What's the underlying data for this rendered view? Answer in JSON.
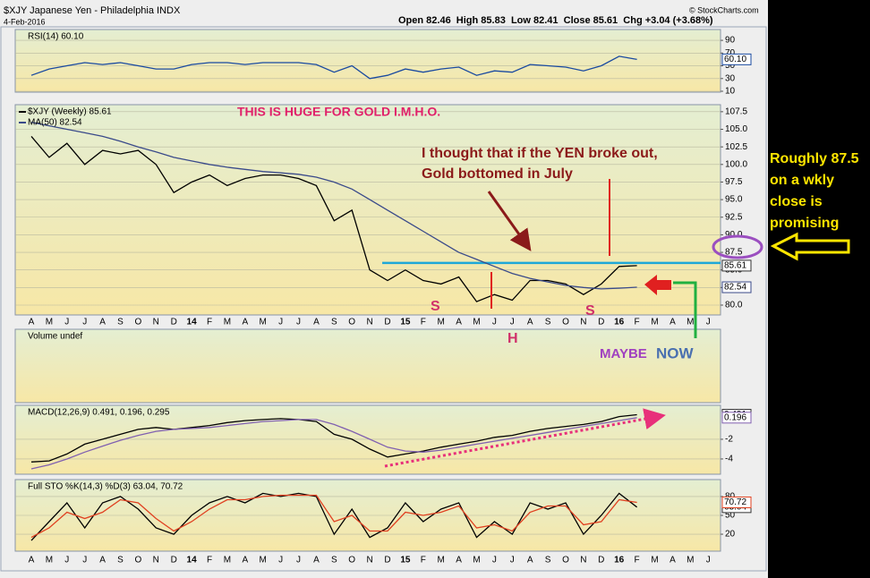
{
  "header": {
    "symbol": "$XJY Japanese Yen - Philadelphia INDX",
    "date": "4-Feb-2016",
    "quote": "Open 82.46  High 85.83  Low 82.41  Close 85.61  Chg +3.04 (+3.68%)",
    "source": "© StockCharts.com"
  },
  "annotations": {
    "headline": "THIS IS HUGE FOR GOLD I.M.H.O.",
    "thought_1": "I thought that if the YEN broke out,",
    "thought_2": "Gold bottomed in July",
    "left_shoulder": "S",
    "head": "H",
    "right_shoulder": "S",
    "maybe": "MAYBE",
    "now": "NOW",
    "side_note": [
      "Roughly 87.5",
      "on a wkly",
      "close is",
      "promising"
    ]
  },
  "chart_data": [
    {
      "type": "line",
      "title": "RSI(14) 60.10",
      "ylim": [
        8.6,
        107
      ],
      "yticks": [
        10,
        30,
        50,
        70,
        90
      ],
      "grid": true,
      "series": [
        {
          "color": "#1a4aa0",
          "last_label": "60.10",
          "values": [
            35,
            45,
            50,
            55,
            52,
            55,
            50,
            45,
            45,
            52,
            55,
            55,
            52,
            55,
            55,
            55,
            52,
            40,
            50,
            30,
            35,
            45,
            40,
            45,
            48,
            35,
            42,
            40,
            52,
            50,
            48,
            42,
            50,
            65,
            60.1,
            null,
            null,
            null,
            null
          ]
        }
      ]
    },
    {
      "type": "line",
      "categories": [
        "A",
        "M",
        "J",
        "J",
        "A",
        "S",
        "O",
        "N",
        "D",
        "14",
        "F",
        "M",
        "A",
        "M",
        "J",
        "J",
        "A",
        "S",
        "O",
        "N",
        "D",
        "15",
        "F",
        "M",
        "A",
        "M",
        "J",
        "J",
        "A",
        "S",
        "O",
        "N",
        "D",
        "16",
        "F",
        "M",
        "A",
        "M",
        "J"
      ],
      "ylim": [
        78.6,
        108.5
      ],
      "yticks": [
        {
          "value": 80,
          "label": "80.0"
        },
        82.5,
        {
          "value": 85,
          "label": "85.0"
        },
        87.5,
        {
          "value": 90,
          "label": "90.0"
        },
        92.5,
        {
          "value": 95,
          "label": "95.0"
        },
        97.5,
        {
          "value": 100,
          "label": "100.0"
        },
        102.5,
        {
          "value": 105,
          "label": "105.0"
        },
        107.5
      ],
      "grid": true,
      "hlines": [
        {
          "value": 86,
          "color": "#1fa8d8"
        }
      ],
      "series": [
        {
          "name": "$XJY (Weekly) 85.61",
          "color": "#000000",
          "values": [
            104,
            101,
            103,
            100,
            102,
            101.5,
            102,
            100,
            96,
            97.5,
            98.5,
            97,
            98,
            98.5,
            98.5,
            98,
            97,
            92,
            93.5,
            85,
            83.5,
            85,
            83.5,
            83,
            84,
            80.5,
            81.5,
            80.7,
            83.5,
            83.5,
            83,
            81.5,
            83,
            85.5,
            85.61,
            null,
            null,
            null,
            null
          ]
        },
        {
          "name": "MA(50) 82.54",
          "color": "#3a4a8a",
          "values": [
            106,
            105.5,
            105,
            104.5,
            104,
            103.3,
            102.5,
            101.8,
            101,
            100.5,
            100,
            99.6,
            99.3,
            99,
            98.8,
            98.6,
            98.2,
            97.5,
            96.5,
            95,
            93.5,
            92,
            90.5,
            89,
            87.5,
            86.5,
            85.5,
            84.5,
            83.8,
            83.3,
            82.8,
            82.5,
            82.3,
            82.4,
            82.54,
            null,
            null,
            null,
            null
          ]
        }
      ]
    },
    {
      "type": "empty",
      "title": "Volume undef"
    },
    {
      "type": "line",
      "title": "MACD(12,26,9) 0.491, 0.196, 0.295",
      "ylim": [
        -5.55,
        1.45
      ],
      "yticks": [
        -4,
        -2
      ],
      "grid": true,
      "series": [
        {
          "color": "#000000",
          "values": [
            -4.3,
            -4.2,
            -3.5,
            -2.5,
            -2,
            -1.5,
            -1,
            -0.8,
            -1,
            -0.8,
            -0.6,
            -0.3,
            -0.1,
            0,
            0.1,
            0,
            -0.2,
            -1.5,
            -2,
            -3,
            -3.8,
            -3.5,
            -3.2,
            -2.8,
            -2.5,
            -2.2,
            -1.8,
            -1.6,
            -1.2,
            -0.9,
            -0.7,
            -0.5,
            -0.2,
            0.3,
            0.491,
            null,
            null,
            null,
            null
          ]
        },
        {
          "color": "#8060b0",
          "values": [
            -5,
            -4.6,
            -4,
            -3.3,
            -2.7,
            -2.1,
            -1.6,
            -1.2,
            -1,
            -0.9,
            -0.8,
            -0.6,
            -0.4,
            -0.2,
            -0.1,
            0,
            0,
            -0.5,
            -1.2,
            -2,
            -2.8,
            -3.2,
            -3.3,
            -3.1,
            -2.8,
            -2.5,
            -2.2,
            -1.9,
            -1.6,
            -1.3,
            -1,
            -0.7,
            -0.4,
            -0.1,
            0.196,
            null,
            null,
            null,
            null
          ]
        }
      ]
    },
    {
      "type": "line",
      "title": "Full STO %K(14,3) %D(3) 63.04, 70.72",
      "ylim": [
        -7,
        107
      ],
      "yticks": [
        20,
        50,
        80
      ],
      "grid": true,
      "series": [
        {
          "color": "#000000",
          "values": [
            10,
            40,
            70,
            30,
            70,
            80,
            60,
            30,
            20,
            50,
            70,
            80,
            70,
            85,
            80,
            85,
            80,
            20,
            60,
            15,
            30,
            70,
            40,
            60,
            70,
            15,
            40,
            20,
            70,
            60,
            70,
            20,
            50,
            85,
            63.04,
            null,
            null,
            null,
            null
          ]
        },
        {
          "color": "#e04020",
          "values": [
            15,
            30,
            55,
            45,
            55,
            75,
            70,
            45,
            25,
            40,
            60,
            75,
            75,
            80,
            82,
            82,
            82,
            40,
            50,
            25,
            25,
            55,
            50,
            55,
            65,
            30,
            35,
            25,
            55,
            65,
            65,
            35,
            40,
            75,
            70.72,
            null,
            null,
            null,
            null
          ]
        }
      ]
    }
  ]
}
